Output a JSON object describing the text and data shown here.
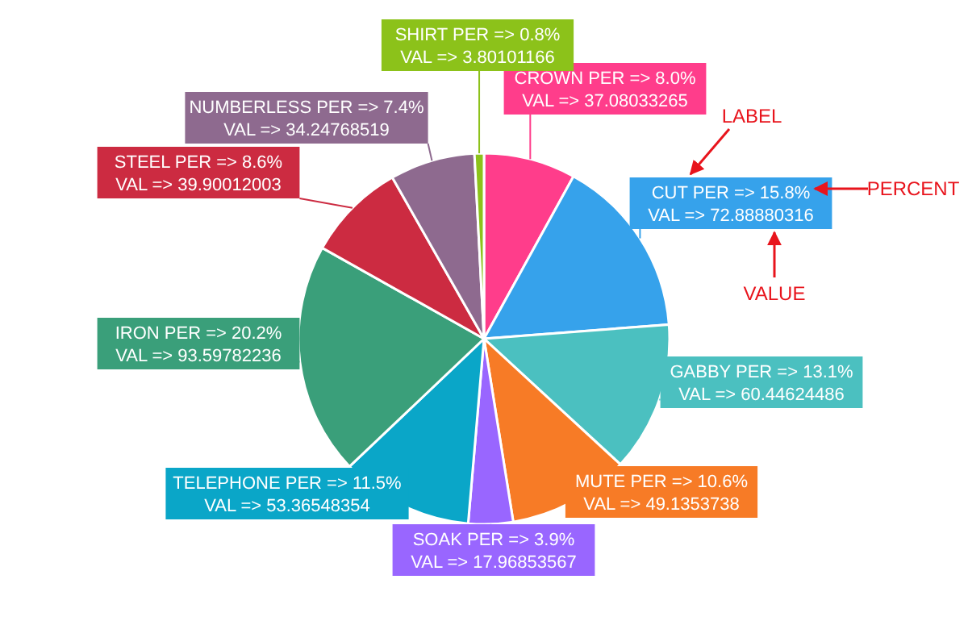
{
  "chart_data": {
    "type": "pie",
    "categories": [
      "CROWN",
      "CUT",
      "GABBY",
      "MUTE",
      "SOAK",
      "TELEPHONE",
      "IRON",
      "STEEL",
      "NUMBERLESS",
      "SHIRT"
    ],
    "values": [
      37.08033265,
      72.88880316,
      60.44624486,
      49.1353738,
      17.96853567,
      53.36548354,
      93.59782236,
      39.90012003,
      34.24768519,
      3.80101166
    ],
    "colors": [
      "#ff3d8b",
      "#36a2eb",
      "#4bc0c0",
      "#f77b26",
      "#9966ff",
      "#0aa6c8",
      "#3a9f7a",
      "#cc2b41",
      "#8e6a8f",
      "#8cc21a"
    ],
    "value_labels": [
      "PER => 8.0%\nVAL => 37.08033265",
      "PER => 15.8%\nVAL => 72.88880316",
      "PER => 13.1%\nVAL => 60.44624486",
      "PER => 10.6%\nVAL => 49.1353738",
      "PER => 3.9%\nVAL => 17.96853567",
      "PER => 11.5%\nVAL => 53.36548354",
      "PER => 20.2%\nVAL => 93.59782236",
      "PER => 8.6%\nVAL => 39.90012003",
      "PER => 7.4%\nVAL => 34.24768519",
      "PER => 0.8%\nVAL => 3.80101166"
    ],
    "annotations": [
      "LABEL",
      "PERCENT",
      "VALUE"
    ]
  }
}
